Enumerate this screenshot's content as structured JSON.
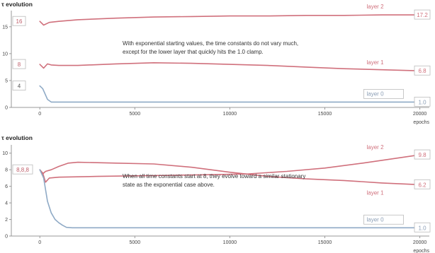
{
  "chart_data": [
    {
      "type": "line",
      "title": "τ evolution",
      "xlabel": "epochs",
      "xlim": [
        -1500,
        20500
      ],
      "ylim": [
        0,
        18
      ],
      "xticks": [
        0,
        5000,
        10000,
        15000,
        20000
      ],
      "yticks": [
        0,
        5,
        10,
        15
      ],
      "grid": false,
      "annotation": [
        "With exponential starting values, the time constants do not vary much,",
        "except for the lower layer that quickly hits the 1.0 clamp."
      ],
      "start_labels": [
        "16",
        "8",
        "4"
      ],
      "series": [
        {
          "name": "layer 2",
          "color": "#d0707c",
          "end_label": "17.2",
          "points": [
            [
              0,
              16
            ],
            [
              200,
              15.3
            ],
            [
              500,
              15.8
            ],
            [
              1000,
              16.0
            ],
            [
              2000,
              16.3
            ],
            [
              4000,
              16.6
            ],
            [
              6000,
              16.8
            ],
            [
              8000,
              16.9
            ],
            [
              10000,
              17.0
            ],
            [
              12000,
              17.0
            ],
            [
              14000,
              17.1
            ],
            [
              16000,
              17.1
            ],
            [
              18000,
              17.2
            ],
            [
              20000,
              17.2
            ]
          ]
        },
        {
          "name": "layer 1",
          "color": "#d0707c",
          "end_label": "6.8",
          "points": [
            [
              0,
              8
            ],
            [
              200,
              7.3
            ],
            [
              400,
              8.1
            ],
            [
              600,
              7.9
            ],
            [
              1000,
              7.8
            ],
            [
              2000,
              7.8
            ],
            [
              4000,
              8.1
            ],
            [
              6000,
              8.3
            ],
            [
              8000,
              8.2
            ],
            [
              10000,
              8.0
            ],
            [
              12000,
              7.8
            ],
            [
              14000,
              7.5
            ],
            [
              16000,
              7.2
            ],
            [
              18000,
              7.0
            ],
            [
              20000,
              6.8
            ]
          ]
        },
        {
          "name": "layer 0",
          "color": "#8faac6",
          "end_label": "1.0",
          "points": [
            [
              0,
              4
            ],
            [
              150,
              3.5
            ],
            [
              400,
              1.5
            ],
            [
              600,
              1.0
            ],
            [
              2000,
              1.0
            ],
            [
              20000,
              1.0
            ]
          ]
        }
      ]
    },
    {
      "type": "line",
      "title": "τ evolution",
      "xlabel": "epochs",
      "xlim": [
        -1500,
        20500
      ],
      "ylim": [
        0,
        11
      ],
      "xticks": [
        0,
        5000,
        10000,
        15000,
        20000
      ],
      "yticks": [
        0,
        2,
        4,
        6,
        8,
        10
      ],
      "grid": false,
      "annotation": [
        "When all time constants start at 8, they evolve toward a similar stationary",
        "state as the exponential case above."
      ],
      "start_labels": [
        "8,8,8"
      ],
      "series": [
        {
          "name": "layer 2",
          "color": "#d0707c",
          "end_label": "9.8",
          "points": [
            [
              0,
              8
            ],
            [
              150,
              7.6
            ],
            [
              300,
              6.5
            ],
            [
              500,
              7.0
            ],
            [
              1000,
              7.1
            ],
            [
              3000,
              7.2
            ],
            [
              6000,
              7.3
            ],
            [
              9000,
              7.4
            ],
            [
              11000,
              7.5
            ],
            [
              13000,
              7.8
            ],
            [
              15000,
              8.2
            ],
            [
              17000,
              8.8
            ],
            [
              18500,
              9.3
            ],
            [
              20000,
              9.8
            ]
          ]
        },
        {
          "name": "layer 1",
          "color": "#d0707c",
          "end_label": "6.2",
          "points": [
            [
              0,
              8
            ],
            [
              150,
              7.5
            ],
            [
              300,
              7.8
            ],
            [
              600,
              8.0
            ],
            [
              1000,
              8.4
            ],
            [
              1500,
              8.8
            ],
            [
              2000,
              8.9
            ],
            [
              4000,
              8.8
            ],
            [
              6000,
              8.7
            ],
            [
              8000,
              8.3
            ],
            [
              10000,
              7.7
            ],
            [
              12000,
              7.2
            ],
            [
              14000,
              6.9
            ],
            [
              16000,
              6.7
            ],
            [
              18000,
              6.4
            ],
            [
              20000,
              6.2
            ]
          ]
        },
        {
          "name": "layer 0",
          "color": "#8faac6",
          "end_label": "1.0",
          "points": [
            [
              0,
              8
            ],
            [
              200,
              7.0
            ],
            [
              400,
              4.2
            ],
            [
              600,
              2.8
            ],
            [
              800,
              2.0
            ],
            [
              1000,
              1.6
            ],
            [
              1200,
              1.3
            ],
            [
              1400,
              1.05
            ],
            [
              1700,
              1.0
            ],
            [
              20000,
              1.0
            ]
          ]
        }
      ]
    }
  ]
}
